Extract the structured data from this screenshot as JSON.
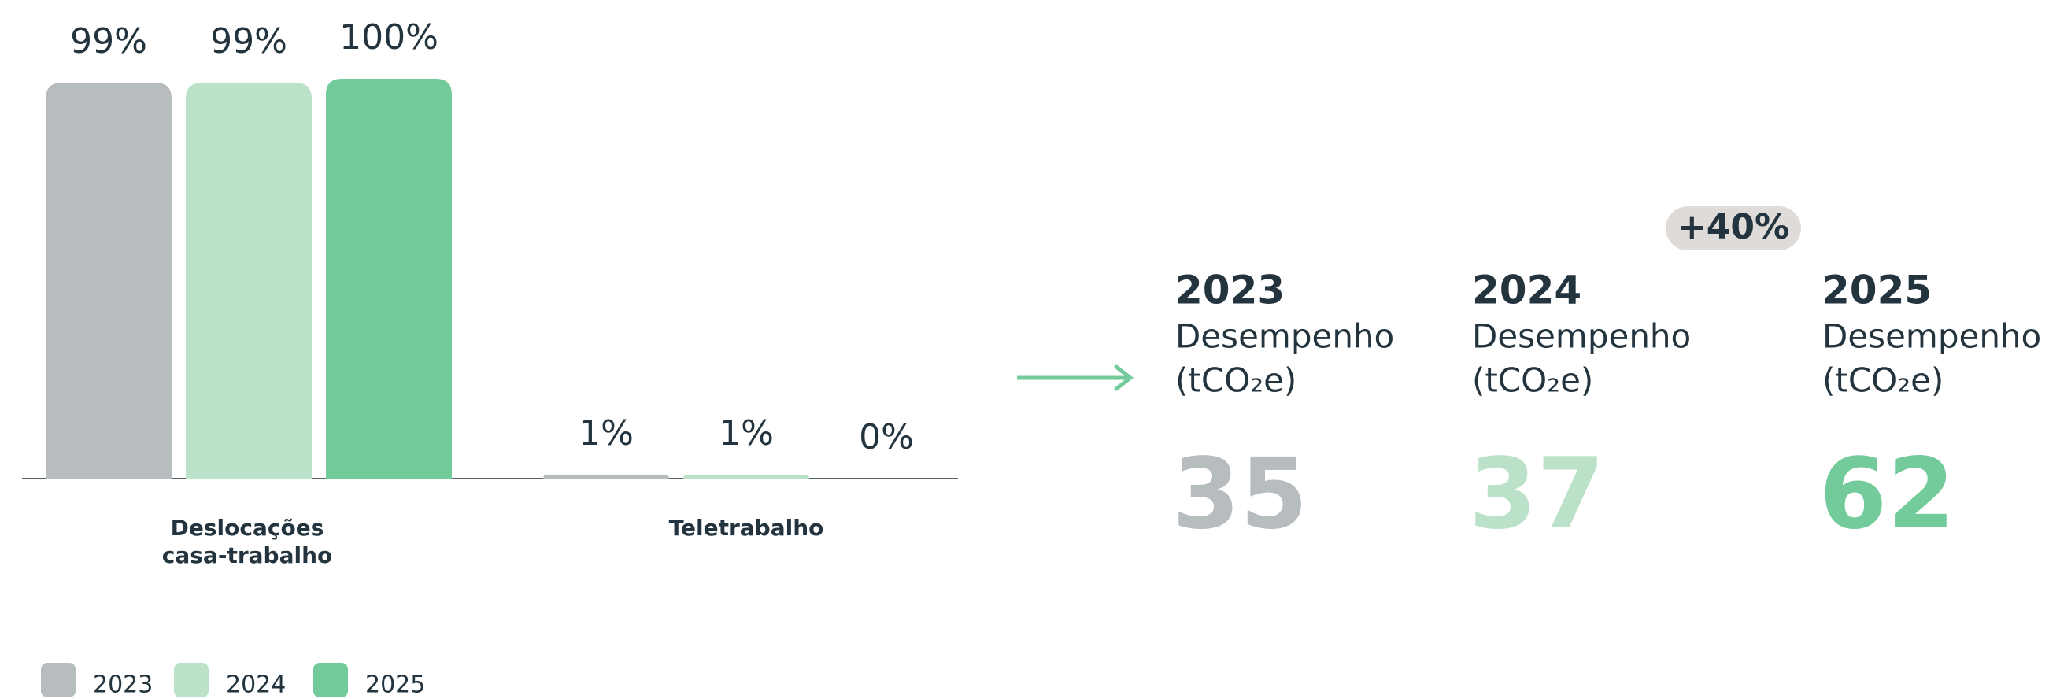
{
  "chart_data": {
    "type": "bar",
    "categories": [
      "Deslocações\ncasa-trabalho",
      "Teletrabalho"
    ],
    "series": [
      {
        "name": "2023",
        "color": "#b7bcbf",
        "values": [
          99,
          1
        ],
        "value_labels": [
          "99%",
          "1%"
        ]
      },
      {
        "name": "2024",
        "color": "#bbe2c8",
        "values": [
          99,
          1
        ],
        "value_labels": [
          "99%",
          "1%"
        ]
      },
      {
        "name": "2025",
        "color": "#73cb9b",
        "values": [
          100,
          0
        ],
        "value_labels": [
          "100%",
          "0%"
        ]
      }
    ]
  },
  "kpis": {
    "badge": "+40%",
    "items": [
      {
        "year": "2023",
        "label": "Desempenho",
        "unit": "(tCO₂e)",
        "value": 35
      },
      {
        "year": "2024",
        "label": "Desempenho",
        "unit": "(tCO₂e)",
        "value": 37
      },
      {
        "year": "2025",
        "label": "Desempenho",
        "unit": "(tCO₂e)",
        "value": 62
      }
    ]
  }
}
